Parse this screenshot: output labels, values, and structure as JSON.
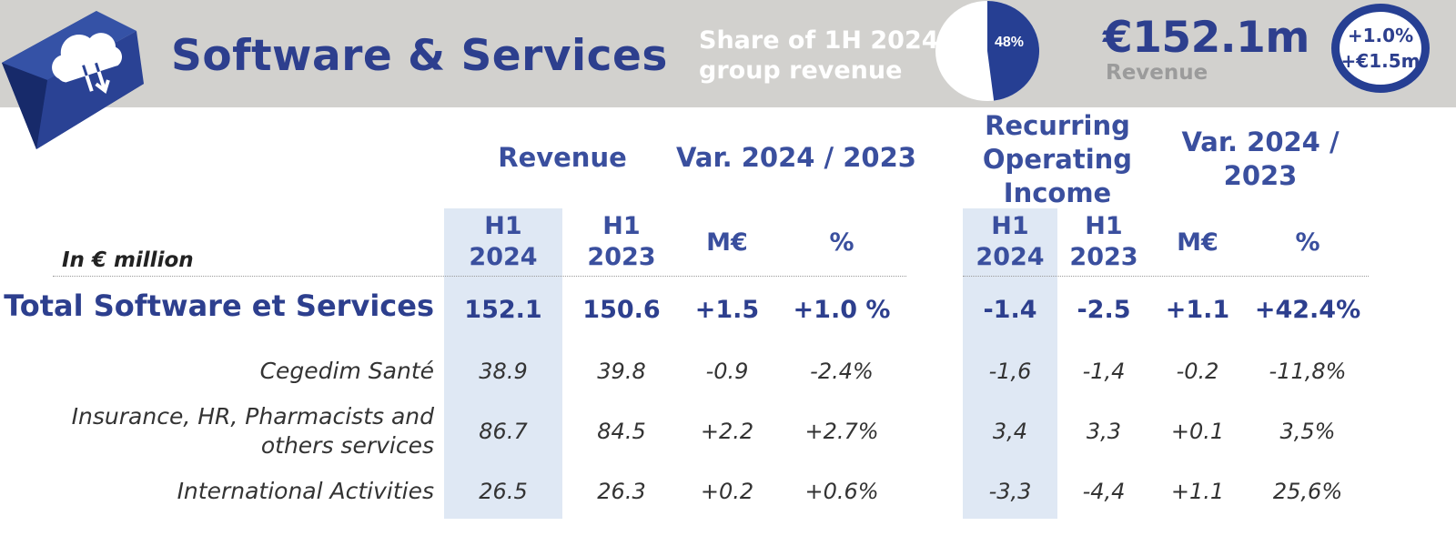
{
  "banner": {
    "title": "Software & Services",
    "share_text_line1": "Share of 1H 2024",
    "share_text_line2": "group revenue",
    "pie_label": "48%",
    "pie_share_percent": 48,
    "revenue_value": "€152.1m",
    "revenue_label": "Revenue",
    "variation_pct": "+1.0%",
    "variation_abs": "+€1.5m",
    "colors": {
      "banner_bg": "#d2d1ce",
      "accent": "#263f93",
      "shade": "#dfe8f4"
    }
  },
  "headers": {
    "revenue": "Revenue",
    "var_rev": "Var. 2024 / 2023",
    "roi_line1": "Recurring",
    "roi_line2": "Operating",
    "roi_line3": "Income",
    "var_roi_line1": "Var. 2024 /",
    "var_roi_line2": "2023",
    "in_million": "In € million",
    "cols": [
      {
        "line1": "H1",
        "line2": "2024"
      },
      {
        "line1": "H1",
        "line2": "2023"
      },
      {
        "line1": "M€"
      },
      {
        "line1": "%"
      },
      {
        "line1": "H1",
        "line2": "2024"
      },
      {
        "line1": "H1",
        "line2": "2023"
      },
      {
        "line1": "M€"
      },
      {
        "line1": "%"
      }
    ]
  },
  "table": {
    "total": {
      "label": "Total Software et Services",
      "values": [
        "152.1",
        "150.6",
        "+1.5",
        "+1.0 %",
        "-1.4",
        "-2.5",
        "+1.1",
        "+42.4%"
      ]
    },
    "rows": [
      {
        "label_line1": "Cegedim Santé",
        "label_line2": "",
        "values": [
          "38.9",
          "39.8",
          "-0.9",
          "-2.4%",
          "-1,6",
          "-1,4",
          "-0.2",
          "-11,8%"
        ]
      },
      {
        "label_line1": "Insurance, HR, Pharmacists and",
        "label_line2": "others services",
        "values": [
          "86.7",
          "84.5",
          "+2.2",
          "+2.7%",
          "3,4",
          "3,3",
          "+0.1",
          "3,5%"
        ]
      },
      {
        "label_line1": "International Activities",
        "label_line2": "",
        "values": [
          "26.5",
          "26.3",
          "+0.2",
          "+0.6%",
          "-3,3",
          "-4,4",
          "+1.1",
          "25,6%"
        ]
      }
    ]
  }
}
